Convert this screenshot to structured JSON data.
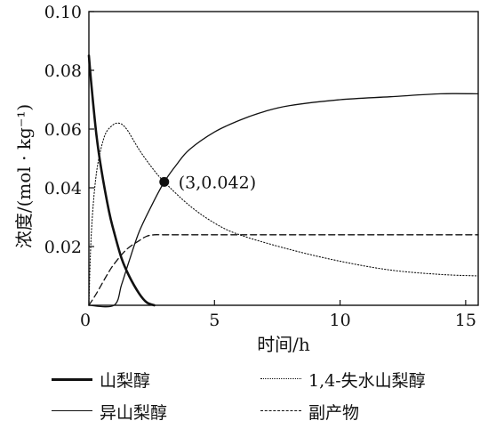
{
  "chart_data": {
    "type": "line",
    "title": "",
    "xlabel": "时间/h",
    "ylabel": "浓度/(mol · kg⁻¹)",
    "xlim": [
      0,
      15.5
    ],
    "ylim": [
      0,
      0.1
    ],
    "x_ticks": [
      0,
      5,
      10,
      15
    ],
    "x_tick_labels": [
      "0",
      "5",
      "10",
      "15"
    ],
    "y_ticks": [
      0.02,
      0.04,
      0.06,
      0.08,
      0.1
    ],
    "y_tick_labels": [
      "0.02",
      "0.04",
      "0.06",
      "0.08",
      "0.10"
    ],
    "grid": false,
    "legend_position": "bottom",
    "series": [
      {
        "name": "山梨醇",
        "style": "solid-thick",
        "x": [
          0,
          0.1,
          0.3,
          0.5,
          0.8,
          1.0,
          1.3,
          1.6,
          2.0,
          2.3,
          2.6
        ],
        "y": [
          0.085,
          0.075,
          0.058,
          0.046,
          0.032,
          0.025,
          0.016,
          0.01,
          0.004,
          0.001,
          0.0
        ]
      },
      {
        "name": "1,4-失水山梨醇",
        "style": "dotted",
        "x": [
          0,
          0.1,
          0.3,
          0.6,
          0.9,
          1.2,
          1.5,
          2.0,
          2.5,
          3.0,
          4.0,
          5.0,
          6.0,
          8.0,
          10.0,
          12.0,
          14.0,
          15.5
        ],
        "y": [
          0.0,
          0.025,
          0.045,
          0.057,
          0.061,
          0.062,
          0.06,
          0.053,
          0.047,
          0.042,
          0.034,
          0.028,
          0.024,
          0.019,
          0.015,
          0.012,
          0.0105,
          0.01
        ]
      },
      {
        "name": "异山梨醇",
        "style": "solid",
        "x": [
          0,
          1.0,
          1.3,
          1.6,
          2.0,
          2.5,
          3.0,
          3.5,
          4.0,
          5.0,
          6.0,
          7.0,
          8.0,
          10.0,
          12.0,
          14.0,
          15.5
        ],
        "y": [
          0.0,
          0.0,
          0.007,
          0.015,
          0.025,
          0.034,
          0.042,
          0.048,
          0.053,
          0.059,
          0.063,
          0.066,
          0.068,
          0.07,
          0.071,
          0.072,
          0.072
        ]
      },
      {
        "name": "副产物",
        "style": "dashed",
        "x": [
          0,
          0.3,
          0.7,
          1.0,
          1.5,
          2.0,
          2.3,
          2.6,
          3.0,
          4.0,
          6.0,
          10.0,
          15.5
        ],
        "y": [
          0.0,
          0.004,
          0.01,
          0.014,
          0.019,
          0.022,
          0.0235,
          0.024,
          0.024,
          0.024,
          0.024,
          0.024,
          0.024
        ]
      }
    ],
    "annotations": [
      {
        "x": 3,
        "y": 0.042,
        "text": "(3,0.042)"
      }
    ]
  }
}
